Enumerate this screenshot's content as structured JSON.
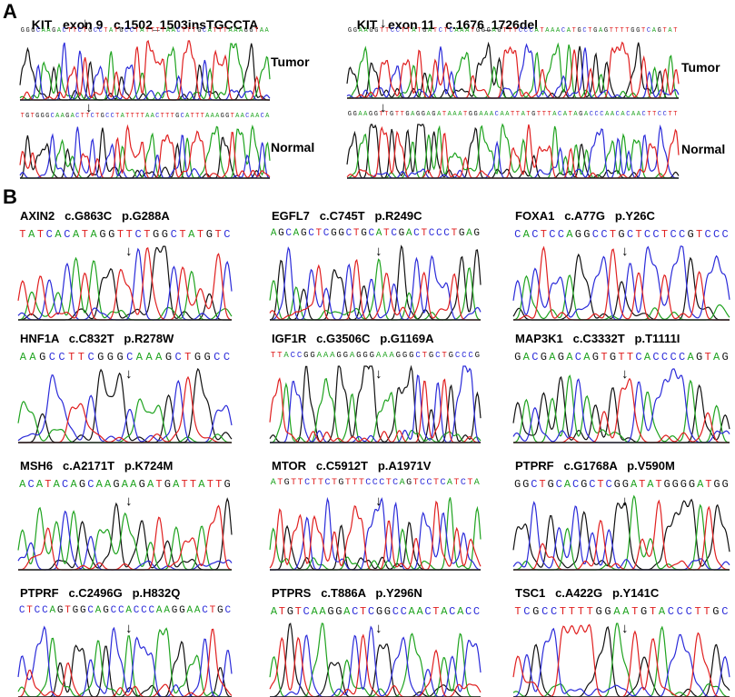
{
  "panelA": {
    "letter": "A",
    "left": {
      "gene": "KIT",
      "exon": "exon 9",
      "mutation": "c.1502_1503insTGCCTA",
      "tumor_label": "Tumor",
      "normal_label": "Normal",
      "tumor_seq": "GGGCAAGACTTCTGCCTATGCCTATTTTAACTTTGCATTTAAAGGTAA",
      "normal_seq": "TGTGGGCAAGACTTCTGCCTATTTTAACTTTGCATTTAAAGGTAACAACA"
    },
    "right": {
      "gene": "KIT",
      "exon": "exon 11",
      "mutation": "c.1676_1726del",
      "tumor_label": "Tumor",
      "normal_label": "Normal",
      "tumor_seq": "GGAAGGTTCCTTATGATCTCAAATGGGAGTTTCCCATAAACATGCTGAGTTTTGGTCAGTAT",
      "normal_seq": "GGAAGGTTGTTGAGGAGATAAATGGAAACAATTATGTTTACATAGACCCAACACAACTTCCTT"
    }
  },
  "panelB": {
    "letter": "B",
    "items": [
      {
        "gene": "AXIN2",
        "cdna": "c.G863C",
        "protein": "p.G288A",
        "seq": "TATCACATAGGTTCTGGCTATGTC"
      },
      {
        "gene": "EGFL7",
        "cdna": "c.C745T",
        "protein": "p.R249C",
        "seq": "AGCAGCTCGGCTGCATCGACTCCCTGAG"
      },
      {
        "gene": "FOXA1",
        "cdna": "c.A77G",
        "protein": "p.Y26C",
        "seq": "CACTCCAGGCCTGCTCCTCCGTCCC"
      },
      {
        "gene": "HNF1A",
        "cdna": "c.C832T",
        "protein": "p.R278W",
        "seq": "AAGCCTTCGGGCAAAGCTGGCC"
      },
      {
        "gene": "IGF1R",
        "cdna": "c.G3506C",
        "protein": "p.G1169A",
        "seq": "TTACCGGAAAGGAGGGAAAGGGCTGCTGCCCG"
      },
      {
        "gene": "MAP3K1",
        "cdna": "c.C3332T",
        "protein": "p.T1111I",
        "seq": "GACGAGACAGTGTTCACCCCAGTAG"
      },
      {
        "gene": "MSH6",
        "cdna": "c.A2171T",
        "protein": "p.K724M",
        "seq": "ACATACAGCAAGAAGATGATTATTG"
      },
      {
        "gene": "MTOR",
        "cdna": "c.C5912T",
        "protein": "p.A1971V",
        "seq": "ATGTTCTTCTGTTTCCCTCAGTCCTCATCTA"
      },
      {
        "gene": "PTPRF",
        "cdna": "c.G1768A",
        "protein": "p.V590M",
        "seq": "GGCTGCACGCTCGGATATGGGGATGG"
      },
      {
        "gene": "PTPRF",
        "cdna": "c.C2496G",
        "protein": "p.H832Q",
        "seq": "CTCCAGTGGCAGCCACCCAAGGAACTGC"
      },
      {
        "gene": "PTPRS",
        "cdna": "c.T886A",
        "protein": "p.Y296N",
        "seq": "ATGTCAAGGACTCGGCCAACTACACC"
      },
      {
        "gene": "TSC1",
        "cdna": "c.A422G",
        "protein": "p.Y141C",
        "seq": "TCGCCTTTTGGAATGTACCCTTGC"
      }
    ]
  },
  "base_colors": {
    "A": "#1fa31f",
    "C": "#2b2bd9",
    "G": "#111111",
    "T": "#e02020"
  }
}
